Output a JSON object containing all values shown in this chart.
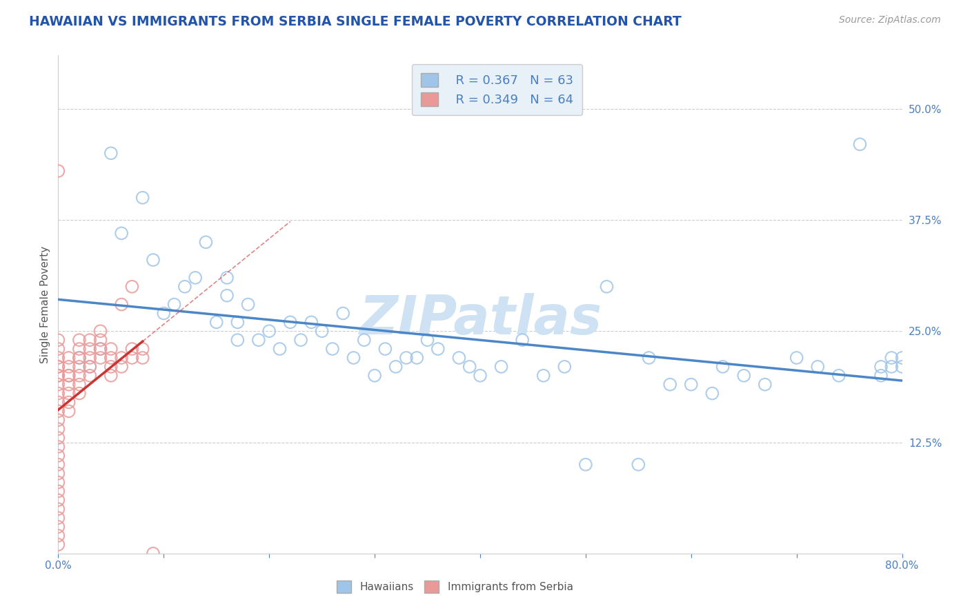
{
  "title": "HAWAIIAN VS IMMIGRANTS FROM SERBIA SINGLE FEMALE POVERTY CORRELATION CHART",
  "source": "Source: ZipAtlas.com",
  "ylabel": "Single Female Poverty",
  "xlim": [
    0.0,
    0.8
  ],
  "ylim": [
    0.0,
    0.56
  ],
  "yticks_right": [
    0.125,
    0.25,
    0.375,
    0.5
  ],
  "yticklabels_right": [
    "12.5%",
    "25.0%",
    "37.5%",
    "50.0%"
  ],
  "blue_R": 0.367,
  "blue_N": 63,
  "pink_R": 0.349,
  "pink_N": 64,
  "blue_color": "#9fc5e8",
  "pink_color": "#ea9999",
  "blue_line_color": "#4a86c8",
  "pink_line_color": "#cc3333",
  "blue_scatter_x": [
    0.02,
    0.03,
    0.04,
    0.05,
    0.06,
    0.08,
    0.09,
    0.1,
    0.11,
    0.12,
    0.13,
    0.14,
    0.15,
    0.16,
    0.16,
    0.17,
    0.17,
    0.18,
    0.19,
    0.2,
    0.21,
    0.22,
    0.23,
    0.24,
    0.25,
    0.26,
    0.27,
    0.28,
    0.29,
    0.3,
    0.31,
    0.32,
    0.33,
    0.34,
    0.35,
    0.36,
    0.38,
    0.39,
    0.4,
    0.42,
    0.44,
    0.46,
    0.48,
    0.5,
    0.52,
    0.55,
    0.56,
    0.58,
    0.6,
    0.62,
    0.63,
    0.65,
    0.67,
    0.7,
    0.72,
    0.74,
    0.76,
    0.78,
    0.78,
    0.79,
    0.79,
    0.8,
    0.8
  ],
  "blue_scatter_y": [
    0.22,
    0.21,
    0.23,
    0.45,
    0.36,
    0.4,
    0.33,
    0.27,
    0.28,
    0.3,
    0.31,
    0.35,
    0.26,
    0.29,
    0.31,
    0.24,
    0.26,
    0.28,
    0.24,
    0.25,
    0.23,
    0.26,
    0.24,
    0.26,
    0.25,
    0.23,
    0.27,
    0.22,
    0.24,
    0.2,
    0.23,
    0.21,
    0.22,
    0.22,
    0.24,
    0.23,
    0.22,
    0.21,
    0.2,
    0.21,
    0.24,
    0.2,
    0.21,
    0.1,
    0.3,
    0.1,
    0.22,
    0.19,
    0.19,
    0.18,
    0.21,
    0.2,
    0.19,
    0.22,
    0.21,
    0.2,
    0.46,
    0.2,
    0.21,
    0.22,
    0.21,
    0.21,
    0.22
  ],
  "pink_scatter_x": [
    0.0,
    0.0,
    0.0,
    0.0,
    0.0,
    0.0,
    0.0,
    0.0,
    0.0,
    0.0,
    0.0,
    0.0,
    0.0,
    0.0,
    0.0,
    0.0,
    0.0,
    0.0,
    0.0,
    0.0,
    0.0,
    0.0,
    0.0,
    0.0,
    0.0,
    0.0,
    0.0,
    0.01,
    0.01,
    0.01,
    0.01,
    0.01,
    0.01,
    0.01,
    0.01,
    0.02,
    0.02,
    0.02,
    0.02,
    0.02,
    0.02,
    0.02,
    0.03,
    0.03,
    0.03,
    0.03,
    0.03,
    0.04,
    0.04,
    0.04,
    0.04,
    0.05,
    0.05,
    0.05,
    0.05,
    0.06,
    0.06,
    0.06,
    0.07,
    0.07,
    0.07,
    0.08,
    0.08,
    0.09
  ],
  "pink_scatter_y": [
    0.2,
    0.21,
    0.22,
    0.23,
    0.19,
    0.18,
    0.17,
    0.16,
    0.15,
    0.14,
    0.13,
    0.12,
    0.11,
    0.1,
    0.09,
    0.08,
    0.07,
    0.06,
    0.05,
    0.04,
    0.03,
    0.02,
    0.01,
    0.2,
    0.21,
    0.43,
    0.24,
    0.2,
    0.21,
    0.22,
    0.19,
    0.18,
    0.17,
    0.16,
    0.2,
    0.2,
    0.21,
    0.22,
    0.23,
    0.24,
    0.19,
    0.18,
    0.22,
    0.23,
    0.24,
    0.21,
    0.2,
    0.22,
    0.23,
    0.24,
    0.25,
    0.21,
    0.22,
    0.23,
    0.2,
    0.21,
    0.22,
    0.28,
    0.23,
    0.22,
    0.3,
    0.23,
    0.22,
    0.0
  ],
  "watermark": "ZIPatlas",
  "watermark_color": "#cfe2f3",
  "legend_box_color": "#e8f0f8",
  "title_color": "#2255aa",
  "axis_label_color": "#2255aa",
  "tick_color": "#4a7fc1",
  "grid_color": "#cccccc",
  "background_color": "#ffffff",
  "source_color": "#999999"
}
